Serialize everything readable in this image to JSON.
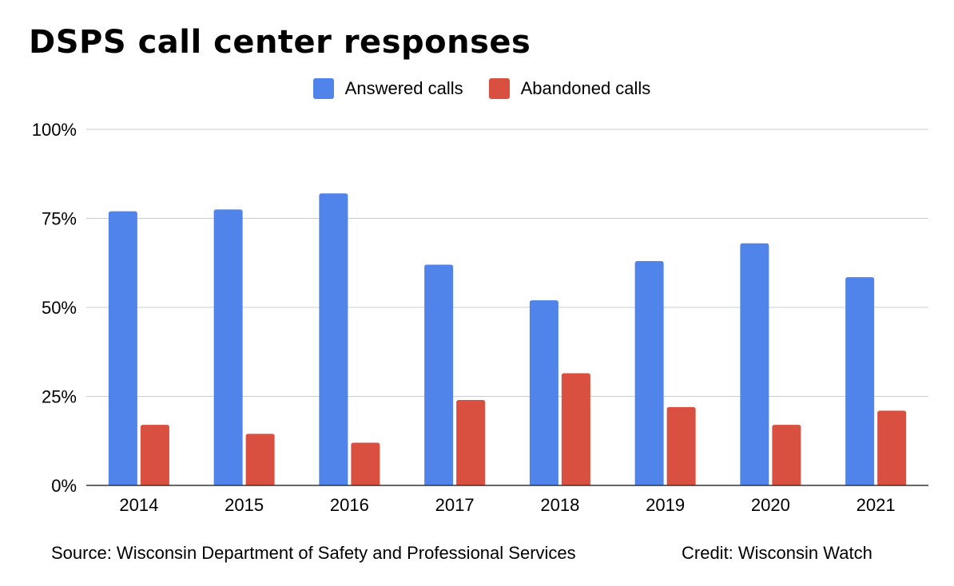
{
  "title": "DSPS call center responses",
  "colors": {
    "answered": "#5084ea",
    "abandoned": "#d95040"
  },
  "chart_data": {
    "type": "bar",
    "title": "DSPS call center responses",
    "xlabel": "",
    "ylabel": "",
    "ylim": [
      0,
      100
    ],
    "yticks": [
      "0%",
      "25%",
      "50%",
      "75%",
      "100%"
    ],
    "ytick_values": [
      0,
      25,
      50,
      75,
      100
    ],
    "categories": [
      "2014",
      "2015",
      "2016",
      "2017",
      "2018",
      "2019",
      "2020",
      "2021"
    ],
    "series": [
      {
        "name": "Answered calls",
        "values": [
          77,
          77.5,
          82,
          62,
          52,
          63,
          68,
          58.5
        ]
      },
      {
        "name": "Abandoned calls",
        "values": [
          17,
          14.5,
          12,
          24,
          31.5,
          22,
          17,
          21
        ]
      }
    ],
    "legend_position": "top-center",
    "grid": true
  },
  "footer": {
    "source": "Source: Wisconsin Department of Safety and Professional Services",
    "credit": "Credit: Wisconsin Watch"
  }
}
